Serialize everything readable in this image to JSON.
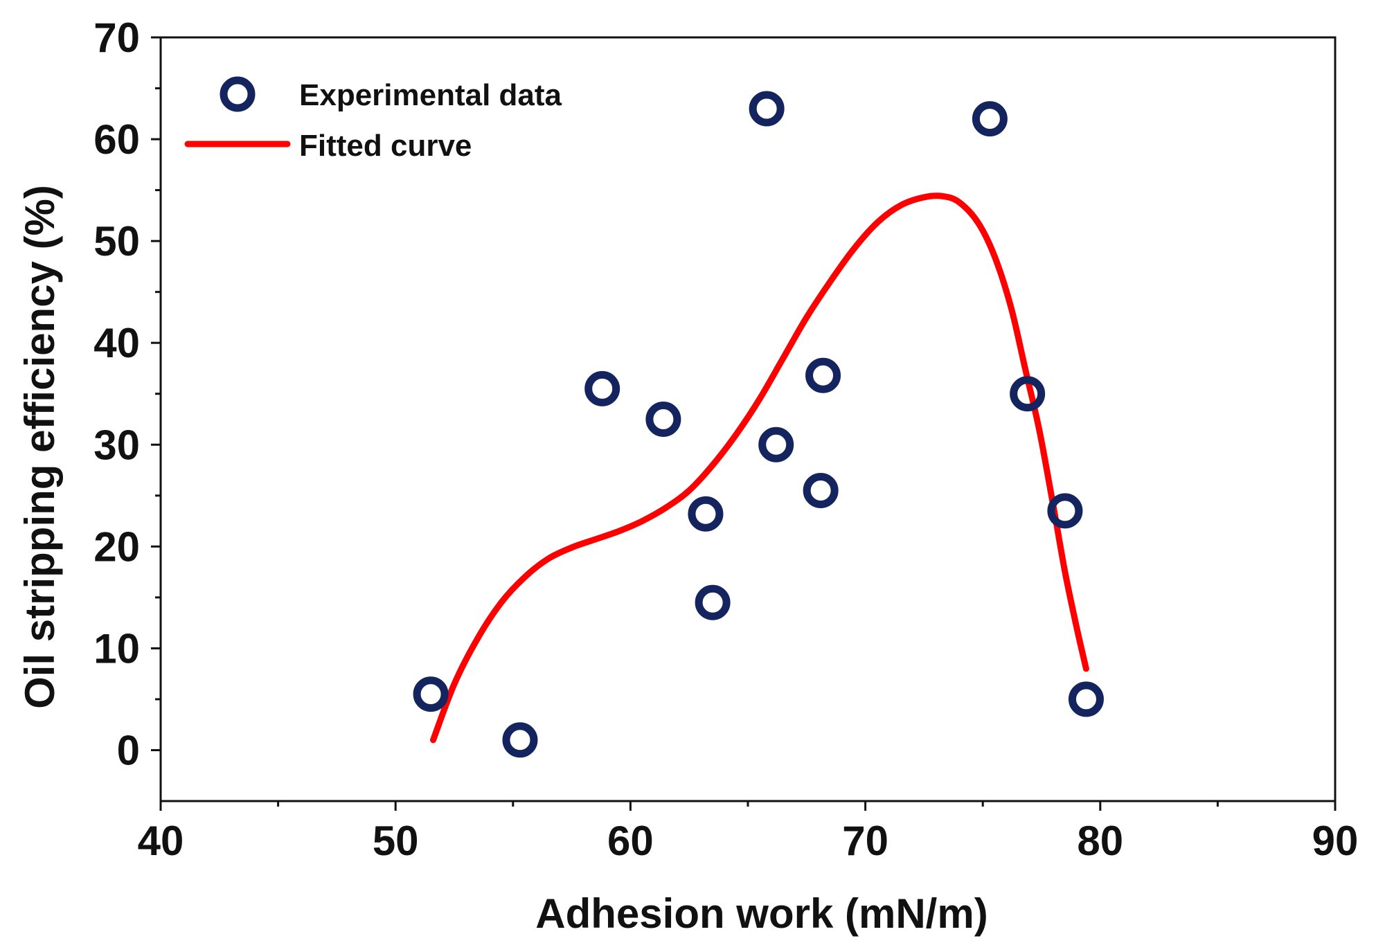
{
  "chart_data": {
    "type": "scatter",
    "title": "",
    "xlabel": "Adhesion work (mN/m)",
    "ylabel": "Oil stripping efficiency (%)",
    "xlim": [
      40,
      90
    ],
    "ylim": [
      -5,
      70
    ],
    "x_ticks": [
      40,
      50,
      60,
      70,
      80,
      90
    ],
    "y_ticks": [
      0,
      10,
      20,
      30,
      40,
      50,
      60,
      70
    ],
    "x_tick_labels": [
      "40",
      "50",
      "60",
      "70",
      "80",
      "90"
    ],
    "y_tick_labels": [
      "0",
      "10",
      "20",
      "30",
      "40",
      "50",
      "60",
      "70"
    ],
    "grid": false,
    "legend_position": "top-left",
    "series": [
      {
        "name": "Experimental data",
        "kind": "scatter",
        "marker": "open-circle",
        "color": "#14245e",
        "x": [
          51.5,
          55.3,
          58.8,
          61.4,
          63.2,
          63.5,
          65.8,
          66.2,
          68.1,
          68.2,
          75.3,
          76.9,
          78.5,
          79.4
        ],
        "y": [
          5.5,
          1.0,
          35.5,
          32.5,
          23.2,
          14.5,
          63.0,
          30.0,
          25.5,
          36.8,
          62.0,
          35.0,
          23.5,
          5.0
        ]
      },
      {
        "name": "Fitted curve",
        "kind": "line",
        "color": "#ff0000",
        "x": [
          51.6,
          52.5,
          53.5,
          54.5,
          55.5,
          56.5,
          57.5,
          58.5,
          59.5,
          60.5,
          61.5,
          62.5,
          63.5,
          64.5,
          65.5,
          66.5,
          67.5,
          68.5,
          69.5,
          70.5,
          71.5,
          72.5,
          73.3,
          74,
          74.8,
          75.5,
          76.2,
          76.8,
          77.4,
          78,
          78.5,
          79,
          79.4
        ],
        "y": [
          1.0,
          6.5,
          11.0,
          14.5,
          17.0,
          18.8,
          19.9,
          20.7,
          21.5,
          22.5,
          23.8,
          25.5,
          28.0,
          31.0,
          34.5,
          38.5,
          42.5,
          46.0,
          49.2,
          51.8,
          53.5,
          54.3,
          54.4,
          53.8,
          51.8,
          48.5,
          43.5,
          37.5,
          31.5,
          24.0,
          17.5,
          12.0,
          8.0
        ]
      }
    ]
  }
}
